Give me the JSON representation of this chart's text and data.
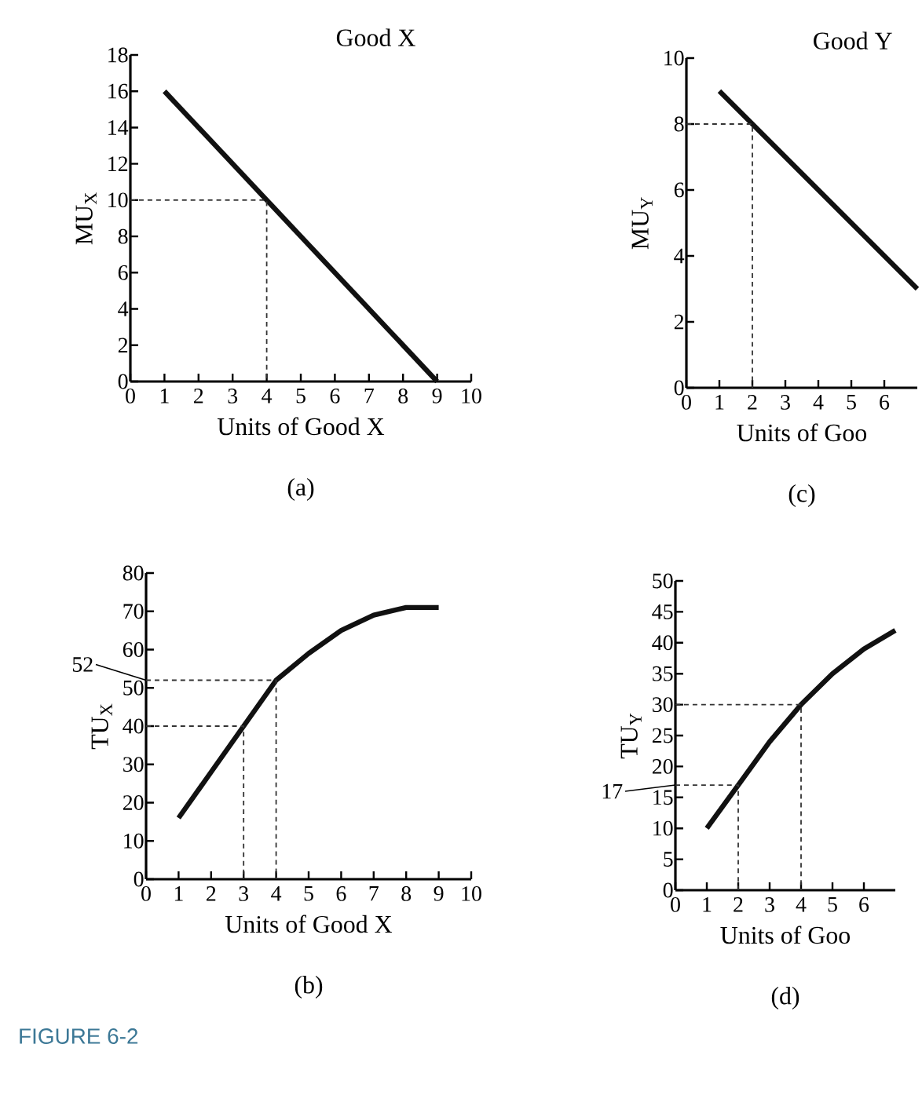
{
  "chart_data": [
    {
      "type": "line",
      "title": "Good X",
      "xlabel": "Units of Good X",
      "ylabel": "MU$_{X}$",
      "xlim": [
        0,
        10
      ],
      "ylim": [
        0,
        18
      ],
      "xticks": [
        0,
        1,
        2,
        3,
        4,
        5,
        6,
        7,
        8,
        9,
        10
      ],
      "yticks": [
        0,
        2,
        4,
        6,
        8,
        10,
        12,
        14,
        16,
        18
      ],
      "series": [
        {
          "color": "#111111",
          "x": [
            1,
            9
          ],
          "values": [
            16,
            0
          ]
        },
        {
          "color": "#333333",
          "line_style": "dashed",
          "x": [
            0,
            4,
            4
          ],
          "values": [
            10,
            10,
            0
          ]
        }
      ],
      "annotations": [
        "(a)"
      ]
    },
    {
      "type": "line",
      "title": "Good Y",
      "xlabel": "Units of Goo",
      "ylabel": "MU$_{Y}$",
      "xlim": [
        0,
        7
      ],
      "ylim": [
        0,
        10
      ],
      "xticks": [
        0,
        1,
        2,
        3,
        4,
        5,
        6
      ],
      "yticks": [
        0,
        2,
        4,
        6,
        8,
        10
      ],
      "series": [
        {
          "color": "#111111",
          "x": [
            1,
            7
          ],
          "values": [
            9,
            3
          ]
        },
        {
          "color": "#333333",
          "line_style": "dashed",
          "x": [
            0,
            2,
            2
          ],
          "values": [
            8,
            8,
            0
          ]
        }
      ],
      "annotations": [
        "(c)"
      ]
    },
    {
      "type": "line",
      "xlabel": "Units of Good X",
      "ylabel": "TU$_{X}$",
      "xlim": [
        0,
        10
      ],
      "ylim": [
        0,
        80
      ],
      "xticks": [
        0,
        1,
        2,
        3,
        4,
        5,
        6,
        7,
        8,
        9,
        10
      ],
      "yticks": [
        0,
        10,
        20,
        30,
        40,
        50,
        60,
        70,
        80
      ],
      "series": [
        {
          "color": "#111111",
          "x": [
            1,
            2,
            3,
            4,
            5,
            6,
            7,
            8,
            9
          ],
          "values": [
            16,
            28,
            40,
            52,
            59,
            65,
            69,
            71,
            71
          ]
        },
        {
          "color": "#333333",
          "line_style": "dashed",
          "x": [
            0,
            3,
            3
          ],
          "values": [
            40,
            40,
            0
          ]
        },
        {
          "color": "#333333",
          "line_style": "dashed",
          "x": [
            0,
            4,
            4
          ],
          "values": [
            52,
            52,
            0
          ]
        }
      ],
      "annotations": [
        {
          "text": "52",
          "x": 0,
          "y": 52
        },
        "(b)",
        "FIGURE 6-2"
      ]
    },
    {
      "type": "line",
      "xlabel": "Units of Goo",
      "ylabel": "TU$_{Y}$",
      "xlim": [
        0,
        7
      ],
      "ylim": [
        0,
        50
      ],
      "xticks": [
        0,
        1,
        2,
        3,
        4,
        5,
        6
      ],
      "yticks": [
        0,
        5,
        10,
        15,
        20,
        25,
        30,
        35,
        40,
        45,
        50
      ],
      "series": [
        {
          "color": "#111111",
          "x": [
            1,
            2,
            3,
            4,
            5,
            6,
            7
          ],
          "values": [
            10,
            17,
            24,
            30,
            35,
            39,
            42
          ]
        },
        {
          "color": "#333333",
          "line_style": "dashed",
          "x": [
            0,
            2,
            2
          ],
          "values": [
            17,
            17,
            0
          ]
        },
        {
          "color": "#333333",
          "line_style": "dashed",
          "x": [
            0,
            4,
            4
          ],
          "values": [
            30,
            30,
            0
          ]
        }
      ],
      "annotations": [
        {
          "text": "17",
          "x": 0,
          "y": 17
        },
        "(d)"
      ]
    }
  ]
}
